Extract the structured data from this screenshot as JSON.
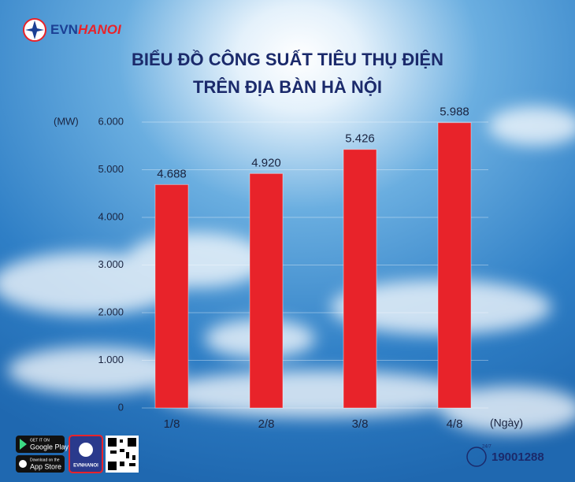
{
  "branding": {
    "brand_a": "EVN",
    "brand_b": "HANOI"
  },
  "chart_data": {
    "type": "bar",
    "title_lines": [
      "BIỂU ĐỒ CÔNG SUẤT TIÊU THỤ ĐIỆN",
      "TRÊN ĐỊA BÀN HÀ NỘI"
    ],
    "y_label": "(MW)",
    "x_label": "(Ngày)",
    "categories": [
      "1/8",
      "2/8",
      "3/8",
      "4/8"
    ],
    "values": [
      4688,
      4920,
      5426,
      5988
    ],
    "value_labels": [
      "4.688",
      "4.920",
      "5.426",
      "5.988"
    ],
    "color": "#e8232a",
    "ylim": [
      0,
      6000
    ],
    "yticks": [
      0,
      {
        "value": 1000,
        "label": "1.000"
      },
      {
        "value": 2000,
        "label": "2.000"
      },
      {
        "value": 3000,
        "label": "3.000"
      },
      {
        "value": 4000,
        "label": "4.000"
      },
      {
        "value": 5000,
        "label": "5.000"
      },
      {
        "value": 6000,
        "label": "6.000"
      }
    ],
    "grid": true
  },
  "footer": {
    "google_small": "GET IT ON",
    "google": "Google Play",
    "apple_small": "Download on the",
    "apple": "App Store",
    "app_name": "EVNHANOI",
    "hours": "24/7",
    "hotline": "19001288"
  }
}
